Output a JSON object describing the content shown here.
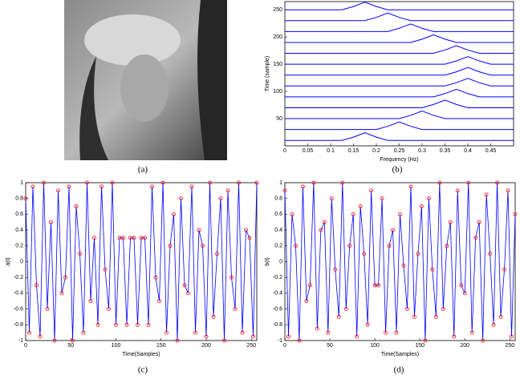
{
  "captions": [
    "(a)",
    "(b)",
    "(c)",
    "(d)"
  ],
  "chart_data": [
    {
      "type": "waterfall",
      "xlabel": "Frequency (Hz)",
      "ylabel": "Time (sample)",
      "color": "#0000ff",
      "xlim": [
        0,
        0.5
      ],
      "ylim": [
        0,
        265
      ],
      "xticks": [
        0,
        0.05,
        0.1,
        0.15,
        0.2,
        0.25,
        0.3,
        0.35,
        0.4,
        0.45
      ],
      "yticks": [
        50,
        100,
        150,
        200,
        250
      ],
      "x": [
        0,
        0.025,
        0.05,
        0.075,
        0.1,
        0.125,
        0.15,
        0.175,
        0.2,
        0.225,
        0.25,
        0.275,
        0.3,
        0.325,
        0.35,
        0.375,
        0.4,
        0.425,
        0.45,
        0.475,
        0.5
      ],
      "series": [
        {
          "values": [
            10,
            10,
            10,
            10,
            10,
            10,
            16,
            24,
            16,
            10,
            10,
            10,
            10,
            10,
            10,
            10,
            10,
            10,
            10,
            10,
            10
          ]
        },
        {
          "values": [
            30,
            30,
            30,
            30,
            30,
            30,
            30,
            30,
            30,
            36,
            44,
            36,
            30,
            30,
            30,
            30,
            30,
            30,
            30,
            30,
            30
          ]
        },
        {
          "values": [
            50,
            50,
            50,
            50,
            50,
            50,
            50,
            50,
            50,
            50,
            50,
            56,
            64,
            56,
            50,
            50,
            50,
            50,
            50,
            50,
            50
          ]
        },
        {
          "values": [
            70,
            70,
            70,
            70,
            70,
            70,
            70,
            70,
            70,
            70,
            70,
            70,
            70,
            76,
            84,
            76,
            70,
            70,
            70,
            70,
            70
          ]
        },
        {
          "values": [
            90,
            90,
            90,
            90,
            90,
            90,
            90,
            90,
            90,
            90,
            90,
            90,
            90,
            90,
            96,
            104,
            96,
            90,
            90,
            90,
            90
          ]
        },
        {
          "values": [
            110,
            110,
            110,
            110,
            110,
            110,
            110,
            110,
            110,
            110,
            110,
            110,
            110,
            110,
            110,
            116,
            124,
            116,
            110,
            110,
            110
          ]
        },
        {
          "values": [
            130,
            130,
            130,
            130,
            130,
            130,
            130,
            130,
            130,
            130,
            130,
            130,
            130,
            130,
            130,
            136,
            144,
            136,
            130,
            130,
            130
          ]
        },
        {
          "values": [
            150,
            150,
            150,
            150,
            150,
            150,
            150,
            150,
            150,
            150,
            150,
            150,
            150,
            150,
            150,
            156,
            164,
            156,
            150,
            150,
            150
          ]
        },
        {
          "values": [
            170,
            170,
            170,
            170,
            170,
            170,
            170,
            170,
            170,
            170,
            170,
            170,
            170,
            170,
            176,
            184,
            176,
            170,
            170,
            170,
            170
          ]
        },
        {
          "values": [
            190,
            190,
            190,
            190,
            190,
            190,
            190,
            190,
            190,
            190,
            190,
            190,
            196,
            204,
            196,
            190,
            190,
            190,
            190,
            190,
            190
          ]
        },
        {
          "values": [
            210,
            210,
            210,
            210,
            210,
            210,
            210,
            210,
            210,
            210,
            216,
            224,
            216,
            210,
            210,
            210,
            210,
            210,
            210,
            210,
            210
          ]
        },
        {
          "values": [
            230,
            230,
            230,
            230,
            230,
            230,
            230,
            230,
            236,
            244,
            236,
            230,
            230,
            230,
            230,
            230,
            230,
            230,
            230,
            230,
            230
          ]
        },
        {
          "values": [
            250,
            250,
            250,
            250,
            250,
            250,
            256,
            264,
            256,
            250,
            250,
            250,
            250,
            250,
            250,
            250,
            250,
            250,
            250,
            250,
            250
          ]
        }
      ]
    },
    {
      "type": "line",
      "xlabel": "Time(Samples)",
      "ylabel": "a(t)",
      "xlim": [
        0,
        256
      ],
      "ylim": [
        -1,
        1
      ],
      "xticks": [
        0,
        50,
        100,
        150,
        200,
        250
      ],
      "yticks": [
        -1,
        -0.8,
        -0.6,
        -0.4,
        -0.2,
        0,
        0.2,
        0.4,
        0.6,
        0.8,
        1
      ],
      "x": [
        0,
        4,
        8,
        12,
        16,
        20,
        24,
        28,
        32,
        36,
        40,
        44,
        48,
        52,
        56,
        60,
        64,
        68,
        72,
        76,
        80,
        84,
        88,
        92,
        96,
        100,
        104,
        108,
        112,
        116,
        120,
        124,
        128,
        132,
        136,
        140,
        144,
        148,
        152,
        156,
        160,
        164,
        168,
        172,
        176,
        180,
        184,
        188,
        192,
        196,
        200,
        204,
        208,
        212,
        216,
        220,
        224,
        228,
        232,
        236,
        240,
        244,
        248,
        252,
        256
      ],
      "series": [
        {
          "color": "#0000ff",
          "marker_color": "#ff0000",
          "values": [
            0.8,
            -0.9,
            0.95,
            -0.3,
            -0.95,
            1,
            -0.6,
            0.5,
            -1,
            0.9,
            -0.4,
            -0.2,
            0.95,
            -1,
            0.7,
            0.1,
            -0.9,
            1,
            -0.5,
            0.3,
            -0.8,
            0.95,
            -0.1,
            -0.6,
            1,
            -0.8,
            0.3,
            0.3,
            -0.8,
            0.3,
            0.3,
            -0.8,
            0.3,
            0.3,
            -0.8,
            0.95,
            -0.2,
            -0.5,
            1,
            -0.9,
            0.2,
            0.6,
            -1,
            0.8,
            -0.3,
            -0.4,
            0.95,
            -0.9,
            0.4,
            0.2,
            -0.95,
            1,
            -0.7,
            0.1,
            0.8,
            -1,
            0.9,
            -0.2,
            -0.6,
            1,
            -0.9,
            0.4,
            0.3,
            -0.95,
            1
          ]
        }
      ]
    },
    {
      "type": "line",
      "xlabel": "Time(Samples)",
      "ylabel": "b(t)",
      "xlim": [
        0,
        256
      ],
      "ylim": [
        -1,
        1
      ],
      "xticks": [
        0,
        50,
        100,
        150,
        200,
        250
      ],
      "yticks": [
        -1,
        -0.8,
        -0.6,
        -0.4,
        -0.2,
        0,
        0.2,
        0.4,
        0.6,
        0.8,
        1
      ],
      "x": [
        0,
        4,
        8,
        12,
        16,
        20,
        24,
        28,
        32,
        36,
        40,
        44,
        48,
        52,
        56,
        60,
        64,
        68,
        72,
        76,
        80,
        84,
        88,
        92,
        96,
        100,
        104,
        108,
        112,
        116,
        120,
        124,
        128,
        132,
        136,
        140,
        144,
        148,
        152,
        156,
        160,
        164,
        168,
        172,
        176,
        180,
        184,
        188,
        192,
        196,
        200,
        204,
        208,
        212,
        216,
        220,
        224,
        228,
        232,
        236,
        240,
        244,
        248,
        252,
        256
      ],
      "series": [
        {
          "color": "#0000ff",
          "marker_color": "#ff0000",
          "values": [
            0.9,
            -0.95,
            0.6,
            0.2,
            -1,
            0.95,
            -0.5,
            -0.3,
            1,
            -0.85,
            0.4,
            0.5,
            -0.9,
            0.8,
            -0.1,
            -0.7,
            1,
            -0.6,
            0.2,
            0.6,
            -0.95,
            0.7,
            0.1,
            -0.8,
            0.9,
            -0.3,
            -0.3,
            0.8,
            -0.9,
            0.2,
            0.4,
            -0.9,
            0.6,
            -0.05,
            -0.6,
            0.95,
            -0.7,
            0.1,
            0.7,
            -1,
            0.8,
            -0.1,
            -0.7,
            1,
            -0.6,
            0.2,
            0.5,
            -0.95,
            0.9,
            -0.3,
            -0.4,
            1,
            -0.9,
            0.3,
            0.5,
            -1,
            0.85,
            0.1,
            -0.8,
            1,
            -0.7,
            -0.1,
            0.9,
            -0.95,
            0.6
          ]
        }
      ]
    }
  ]
}
